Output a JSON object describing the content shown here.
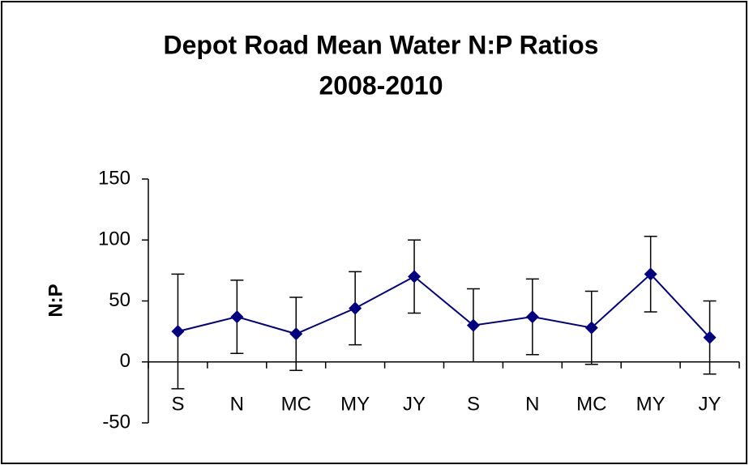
{
  "chart_data": {
    "type": "line",
    "title": [
      "Depot Road Mean Water N:P Ratios",
      "2008-2010"
    ],
    "y_label": "N:P",
    "categories": [
      "S",
      "N",
      "MC",
      "MY",
      "JY",
      "S",
      "N",
      "MC",
      "MY",
      "JY"
    ],
    "series": [
      {
        "color": "#000080",
        "values": [
          25,
          37,
          23,
          44,
          70,
          30,
          37,
          28,
          72,
          20
        ],
        "errors": [
          47,
          30,
          30,
          30,
          30,
          30,
          31,
          30,
          31,
          30
        ]
      }
    ],
    "ylim": [
      -50,
      150
    ],
    "yticks": [
      -50,
      0,
      50,
      100,
      150
    ]
  }
}
